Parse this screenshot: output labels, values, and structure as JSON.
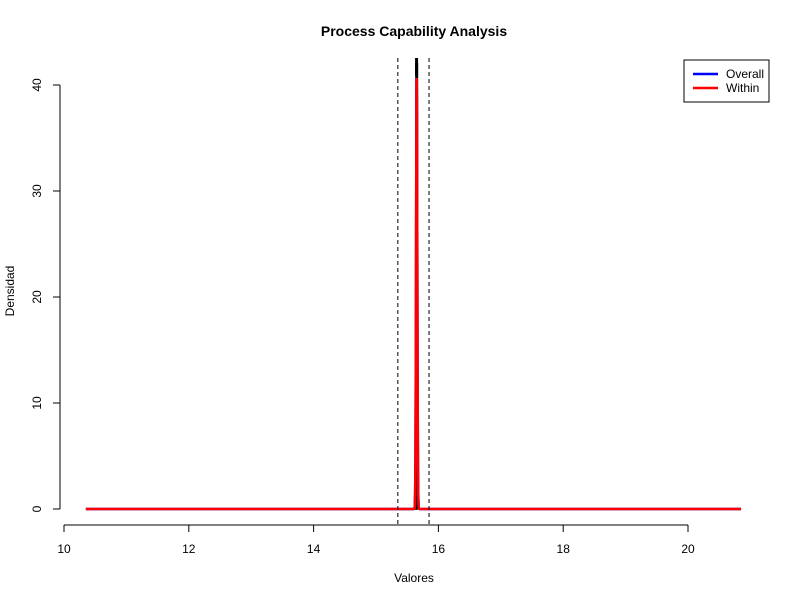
{
  "chart_data": {
    "type": "line",
    "title": "Process Capability Analysis",
    "xlabel": "Valores",
    "ylabel": "Densidad",
    "xlim": [
      10,
      20.8
    ],
    "ylim": [
      0,
      40.8
    ],
    "x_ticks": [
      10,
      12,
      14,
      16,
      18,
      20
    ],
    "y_ticks": [
      0,
      10,
      20,
      30,
      40
    ],
    "grid": false,
    "legend_position": "top-right",
    "spec_limits": [
      15.35,
      15.85
    ],
    "target": 15.65,
    "x_range": [
      10.35,
      20.85
    ],
    "histogram": [
      {
        "x0": 15.62,
        "x1": 15.64,
        "height": 0.5
      },
      {
        "x0": 15.64,
        "x1": 15.66,
        "height": 42
      }
    ],
    "series": [
      {
        "name": "Overall",
        "color": "#0000ff",
        "mean": 15.652,
        "sd": 0.0098
      },
      {
        "name": "Within",
        "color": "#ff0000",
        "mean": 15.652,
        "sd": 0.0098
      }
    ]
  }
}
